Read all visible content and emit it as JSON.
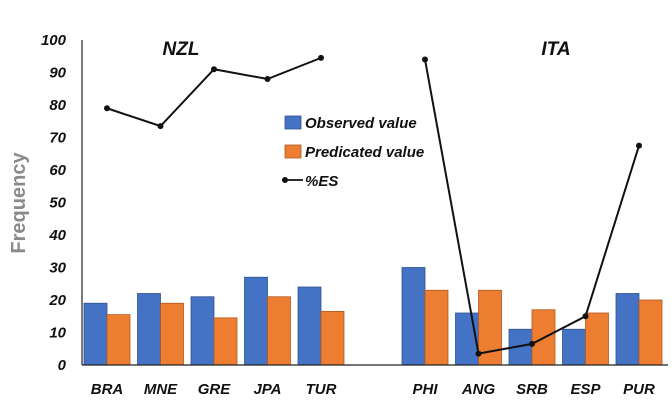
{
  "chart_data": {
    "type": "bar",
    "ylabel": "Frequency",
    "ylim": [
      0,
      100
    ],
    "yticks": [
      0,
      10,
      20,
      30,
      40,
      50,
      60,
      70,
      80,
      90,
      100
    ],
    "legend_position": "center-left",
    "groups": [
      {
        "label": "NZL",
        "categories": [
          "BRA",
          "MNE",
          "GRE",
          "JPA",
          "TUR"
        ],
        "observed": [
          19,
          22,
          21,
          27,
          24
        ],
        "predicted": [
          15.5,
          19,
          14.5,
          21,
          16.5
        ],
        "es": [
          79,
          73.5,
          91,
          88,
          94.5
        ]
      },
      {
        "label": "ITA",
        "categories": [
          "PHI",
          "ANG",
          "SRB",
          "ESP",
          "PUR"
        ],
        "observed": [
          30,
          16,
          11,
          11,
          22
        ],
        "predicted": [
          23,
          23,
          17,
          16,
          20
        ],
        "es": [
          94,
          3.5,
          6.5,
          15,
          67.5
        ]
      }
    ],
    "series": [
      {
        "name": "Observed value",
        "color": "#4472c4",
        "kind": "bar"
      },
      {
        "name": "Predicated value",
        "color": "#ed7d31",
        "kind": "bar"
      },
      {
        "name": "%ES",
        "color": "#111111",
        "kind": "line"
      }
    ]
  }
}
